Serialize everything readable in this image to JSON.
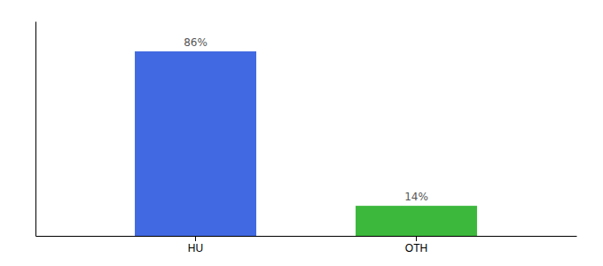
{
  "chart_data": {
    "type": "bar",
    "categories": [
      "HU",
      "OTH"
    ],
    "values": [
      86,
      14
    ],
    "value_labels": [
      "86%",
      "14%"
    ],
    "colors": [
      "#4169e1",
      "#3cb83c"
    ],
    "ylim": [
      0,
      100
    ],
    "data_labels": true,
    "tick_labels": "x",
    "grid": false
  }
}
